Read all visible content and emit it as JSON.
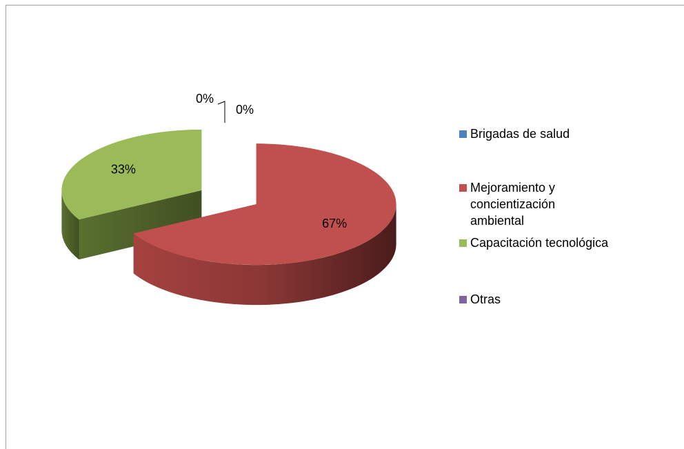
{
  "chart_data": {
    "type": "pie",
    "categories": [
      "Brigadas de salud",
      "Mejoramiento y concientización ambiental",
      "Capacitación tecnológica",
      "Otras"
    ],
    "values": [
      0,
      67,
      33,
      0
    ],
    "value_labels": [
      "0%",
      "67%",
      "33%",
      "0%"
    ],
    "colors": [
      "#4f81bd",
      "#c0504d",
      "#9bbb59",
      "#8064a2"
    ],
    "legend": "right"
  }
}
